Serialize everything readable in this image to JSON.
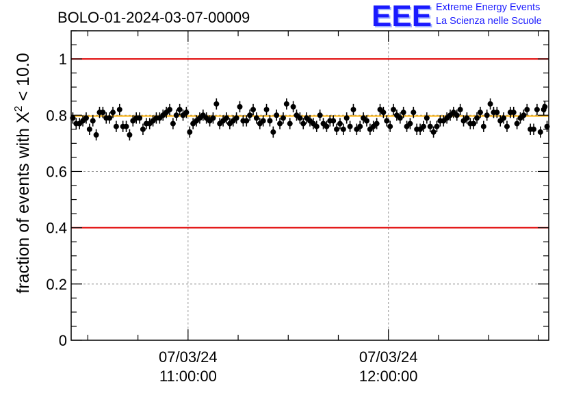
{
  "header": {
    "run_title": "BOLO-01-2024-03-07-00009",
    "logo_text": "EEE",
    "logo_line1": "Extreme Energy Events",
    "logo_line2": "La Scienza nelle Scuole"
  },
  "colors": {
    "threshold_lines": "#e00000",
    "mean_line": "#ffb000",
    "points": "#000000",
    "logo": "#1a1aff"
  },
  "chart_data": {
    "type": "scatter",
    "title": "BOLO-01-2024-03-07-00009",
    "ylabel": "fraction of events with X² < 10.0",
    "ylabel_parts": {
      "prefix": "fraction of events with X",
      "superscript": "2",
      "suffix": " < 10.0"
    },
    "xlabel": "",
    "x_axis": {
      "kind": "time",
      "range": [
        "2024-03-07T10:25:00",
        "2024-03-07T12:48:00"
      ],
      "major_ticks": [
        {
          "time": "2024-03-07T11:00:00",
          "label_date": "07/03/24",
          "label_time": "11:00:00"
        },
        {
          "time": "2024-03-07T12:00:00",
          "label_date": "07/03/24",
          "label_time": "12:00:00"
        }
      ],
      "minor_tick_every_min": 15
    },
    "ylim": [
      0,
      1.1
    ],
    "y_ticks": [
      {
        "value": 0,
        "label": "0"
      },
      {
        "value": 0.2,
        "label": "0.2"
      },
      {
        "value": 0.4,
        "label": "0.4"
      },
      {
        "value": 0.6,
        "label": "0.6"
      },
      {
        "value": 0.8,
        "label": "0.8"
      },
      {
        "value": 1,
        "label": "1"
      }
    ],
    "grid": true,
    "reference_lines": [
      {
        "y": 1.0,
        "color": "#e00000"
      },
      {
        "y": 0.4,
        "color": "#e00000"
      },
      {
        "y": 0.797,
        "color": "#ffb000"
      }
    ],
    "error_bar": 0.02,
    "points": [
      {
        "x": "2024-03-07T10:25:30",
        "y": 0.79
      },
      {
        "x": "2024-03-07T10:26:30",
        "y": 0.77
      },
      {
        "x": "2024-03-07T10:27:30",
        "y": 0.77
      },
      {
        "x": "2024-03-07T10:28:30",
        "y": 0.78
      },
      {
        "x": "2024-03-07T10:29:30",
        "y": 0.79
      },
      {
        "x": "2024-03-07T10:30:30",
        "y": 0.75
      },
      {
        "x": "2024-03-07T10:31:30",
        "y": 0.78
      },
      {
        "x": "2024-03-07T10:32:30",
        "y": 0.73
      },
      {
        "x": "2024-03-07T10:33:30",
        "y": 0.81
      },
      {
        "x": "2024-03-07T10:34:30",
        "y": 0.81
      },
      {
        "x": "2024-03-07T10:35:30",
        "y": 0.79
      },
      {
        "x": "2024-03-07T10:36:30",
        "y": 0.79
      },
      {
        "x": "2024-03-07T10:37:30",
        "y": 0.81
      },
      {
        "x": "2024-03-07T10:38:30",
        "y": 0.76
      },
      {
        "x": "2024-03-07T10:39:30",
        "y": 0.82
      },
      {
        "x": "2024-03-07T10:40:30",
        "y": 0.76
      },
      {
        "x": "2024-03-07T10:41:30",
        "y": 0.76
      },
      {
        "x": "2024-03-07T10:42:30",
        "y": 0.73
      },
      {
        "x": "2024-03-07T10:43:30",
        "y": 0.78
      },
      {
        "x": "2024-03-07T10:44:30",
        "y": 0.79
      },
      {
        "x": "2024-03-07T10:45:30",
        "y": 0.79
      },
      {
        "x": "2024-03-07T10:46:30",
        "y": 0.75
      },
      {
        "x": "2024-03-07T10:47:30",
        "y": 0.77
      },
      {
        "x": "2024-03-07T10:48:30",
        "y": 0.77
      },
      {
        "x": "2024-03-07T10:49:30",
        "y": 0.78
      },
      {
        "x": "2024-03-07T10:50:30",
        "y": 0.79
      },
      {
        "x": "2024-03-07T10:51:30",
        "y": 0.79
      },
      {
        "x": "2024-03-07T10:52:30",
        "y": 0.8
      },
      {
        "x": "2024-03-07T10:53:30",
        "y": 0.81
      },
      {
        "x": "2024-03-07T10:54:30",
        "y": 0.82
      },
      {
        "x": "2024-03-07T10:55:30",
        "y": 0.77
      },
      {
        "x": "2024-03-07T10:56:30",
        "y": 0.8
      },
      {
        "x": "2024-03-07T10:57:30",
        "y": 0.82
      },
      {
        "x": "2024-03-07T10:58:30",
        "y": 0.8
      },
      {
        "x": "2024-03-07T10:59:30",
        "y": 0.81
      },
      {
        "x": "2024-03-07T11:00:30",
        "y": 0.74
      },
      {
        "x": "2024-03-07T11:01:30",
        "y": 0.77
      },
      {
        "x": "2024-03-07T11:02:30",
        "y": 0.78
      },
      {
        "x": "2024-03-07T11:03:30",
        "y": 0.79
      },
      {
        "x": "2024-03-07T11:04:30",
        "y": 0.8
      },
      {
        "x": "2024-03-07T11:05:30",
        "y": 0.79
      },
      {
        "x": "2024-03-07T11:06:30",
        "y": 0.78
      },
      {
        "x": "2024-03-07T11:07:30",
        "y": 0.79
      },
      {
        "x": "2024-03-07T11:08:30",
        "y": 0.84
      },
      {
        "x": "2024-03-07T11:09:30",
        "y": 0.77
      },
      {
        "x": "2024-03-07T11:10:30",
        "y": 0.78
      },
      {
        "x": "2024-03-07T11:11:30",
        "y": 0.79
      },
      {
        "x": "2024-03-07T11:12:30",
        "y": 0.77
      },
      {
        "x": "2024-03-07T11:13:30",
        "y": 0.78
      },
      {
        "x": "2024-03-07T11:14:30",
        "y": 0.79
      },
      {
        "x": "2024-03-07T11:15:30",
        "y": 0.83
      },
      {
        "x": "2024-03-07T11:16:30",
        "y": 0.78
      },
      {
        "x": "2024-03-07T11:17:30",
        "y": 0.78
      },
      {
        "x": "2024-03-07T11:18:30",
        "y": 0.8
      },
      {
        "x": "2024-03-07T11:19:30",
        "y": 0.82
      },
      {
        "x": "2024-03-07T11:20:30",
        "y": 0.79
      },
      {
        "x": "2024-03-07T11:21:30",
        "y": 0.77
      },
      {
        "x": "2024-03-07T11:22:30",
        "y": 0.78
      },
      {
        "x": "2024-03-07T11:23:30",
        "y": 0.82
      },
      {
        "x": "2024-03-07T11:24:30",
        "y": 0.78
      },
      {
        "x": "2024-03-07T11:25:30",
        "y": 0.74
      },
      {
        "x": "2024-03-07T11:26:30",
        "y": 0.8
      },
      {
        "x": "2024-03-07T11:27:30",
        "y": 0.77
      },
      {
        "x": "2024-03-07T11:28:30",
        "y": 0.79
      },
      {
        "x": "2024-03-07T11:29:30",
        "y": 0.84
      },
      {
        "x": "2024-03-07T11:30:30",
        "y": 0.77
      },
      {
        "x": "2024-03-07T11:31:30",
        "y": 0.83
      },
      {
        "x": "2024-03-07T11:32:30",
        "y": 0.8
      },
      {
        "x": "2024-03-07T11:33:30",
        "y": 0.79
      },
      {
        "x": "2024-03-07T11:34:30",
        "y": 0.77
      },
      {
        "x": "2024-03-07T11:35:30",
        "y": 0.79
      },
      {
        "x": "2024-03-07T11:36:30",
        "y": 0.78
      },
      {
        "x": "2024-03-07T11:37:30",
        "y": 0.77
      },
      {
        "x": "2024-03-07T11:38:30",
        "y": 0.76
      },
      {
        "x": "2024-03-07T11:39:30",
        "y": 0.8
      },
      {
        "x": "2024-03-07T11:40:30",
        "y": 0.77
      },
      {
        "x": "2024-03-07T11:41:30",
        "y": 0.76
      },
      {
        "x": "2024-03-07T11:42:30",
        "y": 0.78
      },
      {
        "x": "2024-03-07T11:43:30",
        "y": 0.78
      },
      {
        "x": "2024-03-07T11:44:30",
        "y": 0.75
      },
      {
        "x": "2024-03-07T11:45:30",
        "y": 0.77
      },
      {
        "x": "2024-03-07T11:46:30",
        "y": 0.75
      },
      {
        "x": "2024-03-07T11:47:30",
        "y": 0.79
      },
      {
        "x": "2024-03-07T11:48:30",
        "y": 0.76
      },
      {
        "x": "2024-03-07T11:49:30",
        "y": 0.82
      },
      {
        "x": "2024-03-07T11:50:30",
        "y": 0.75
      },
      {
        "x": "2024-03-07T11:51:30",
        "y": 0.76
      },
      {
        "x": "2024-03-07T11:52:30",
        "y": 0.79
      },
      {
        "x": "2024-03-07T11:53:30",
        "y": 0.78
      },
      {
        "x": "2024-03-07T11:54:30",
        "y": 0.75
      },
      {
        "x": "2024-03-07T11:55:30",
        "y": 0.76
      },
      {
        "x": "2024-03-07T11:56:30",
        "y": 0.77
      },
      {
        "x": "2024-03-07T11:57:30",
        "y": 0.82
      },
      {
        "x": "2024-03-07T11:58:30",
        "y": 0.81
      },
      {
        "x": "2024-03-07T11:59:30",
        "y": 0.78
      },
      {
        "x": "2024-03-07T12:00:30",
        "y": 0.76
      },
      {
        "x": "2024-03-07T12:01:30",
        "y": 0.82
      },
      {
        "x": "2024-03-07T12:02:30",
        "y": 0.8
      },
      {
        "x": "2024-03-07T12:03:30",
        "y": 0.79
      },
      {
        "x": "2024-03-07T12:04:30",
        "y": 0.81
      },
      {
        "x": "2024-03-07T12:05:30",
        "y": 0.76
      },
      {
        "x": "2024-03-07T12:06:30",
        "y": 0.77
      },
      {
        "x": "2024-03-07T12:07:30",
        "y": 0.81
      },
      {
        "x": "2024-03-07T12:08:30",
        "y": 0.75
      },
      {
        "x": "2024-03-07T12:09:30",
        "y": 0.75
      },
      {
        "x": "2024-03-07T12:10:30",
        "y": 0.76
      },
      {
        "x": "2024-03-07T12:11:30",
        "y": 0.79
      },
      {
        "x": "2024-03-07T12:12:30",
        "y": 0.76
      },
      {
        "x": "2024-03-07T12:13:30",
        "y": 0.74
      },
      {
        "x": "2024-03-07T12:14:30",
        "y": 0.76
      },
      {
        "x": "2024-03-07T12:15:30",
        "y": 0.78
      },
      {
        "x": "2024-03-07T12:16:30",
        "y": 0.78
      },
      {
        "x": "2024-03-07T12:17:30",
        "y": 0.79
      },
      {
        "x": "2024-03-07T12:18:30",
        "y": 0.8
      },
      {
        "x": "2024-03-07T12:19:30",
        "y": 0.81
      },
      {
        "x": "2024-03-07T12:20:30",
        "y": 0.8
      },
      {
        "x": "2024-03-07T12:21:30",
        "y": 0.82
      },
      {
        "x": "2024-03-07T12:22:30",
        "y": 0.78
      },
      {
        "x": "2024-03-07T12:23:30",
        "y": 0.79
      },
      {
        "x": "2024-03-07T12:24:30",
        "y": 0.77
      },
      {
        "x": "2024-03-07T12:25:30",
        "y": 0.77
      },
      {
        "x": "2024-03-07T12:26:30",
        "y": 0.79
      },
      {
        "x": "2024-03-07T12:27:30",
        "y": 0.81
      },
      {
        "x": "2024-03-07T12:28:30",
        "y": 0.76
      },
      {
        "x": "2024-03-07T12:29:30",
        "y": 0.8
      },
      {
        "x": "2024-03-07T12:30:30",
        "y": 0.84
      },
      {
        "x": "2024-03-07T12:31:30",
        "y": 0.81
      },
      {
        "x": "2024-03-07T12:32:30",
        "y": 0.81
      },
      {
        "x": "2024-03-07T12:33:30",
        "y": 0.78
      },
      {
        "x": "2024-03-07T12:34:30",
        "y": 0.79
      },
      {
        "x": "2024-03-07T12:35:30",
        "y": 0.76
      },
      {
        "x": "2024-03-07T12:36:30",
        "y": 0.81
      },
      {
        "x": "2024-03-07T12:37:30",
        "y": 0.81
      },
      {
        "x": "2024-03-07T12:38:30",
        "y": 0.77
      },
      {
        "x": "2024-03-07T12:39:30",
        "y": 0.79
      },
      {
        "x": "2024-03-07T12:40:30",
        "y": 0.8
      },
      {
        "x": "2024-03-07T12:41:30",
        "y": 0.82
      },
      {
        "x": "2024-03-07T12:42:30",
        "y": 0.75
      },
      {
        "x": "2024-03-07T12:43:30",
        "y": 0.75
      },
      {
        "x": "2024-03-07T12:44:30",
        "y": 0.82
      },
      {
        "x": "2024-03-07T12:45:30",
        "y": 0.74
      },
      {
        "x": "2024-03-07T12:46:30",
        "y": 0.82
      },
      {
        "x": "2024-03-07T12:46:50",
        "y": 0.83
      },
      {
        "x": "2024-03-07T12:47:30",
        "y": 0.76
      }
    ]
  }
}
